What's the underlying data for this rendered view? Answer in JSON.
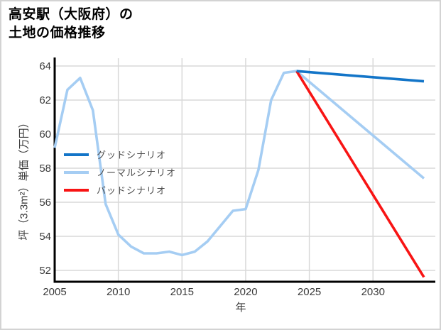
{
  "page": {
    "background": "#ffffff",
    "border_color": "#d3d3d3"
  },
  "header": {
    "title_line1": "高安駅（大阪府）の",
    "title_line2": "土地の価格推移"
  },
  "chart_data": {
    "type": "line",
    "title": "高安駅（大阪府）の土地の価格推移",
    "xlabel": "年",
    "ylabel": "坪（3.3m²）単価（万円）",
    "xlim": [
      2005,
      2035
    ],
    "ylim": [
      51.3,
      64.5
    ],
    "xticks": [
      2005,
      2010,
      2015,
      2020,
      2025,
      2030
    ],
    "yticks": [
      52,
      54,
      56,
      58,
      60,
      62,
      64
    ],
    "grid": true,
    "grid_color": "#d9d9d9",
    "axis_color": "#000000",
    "legend_position": "middle-left",
    "series": [
      {
        "name": "グッドシナリオ",
        "color": "#1375c8",
        "x": [
          2024,
          2034
        ],
        "values": [
          63.7,
          63.1
        ]
      },
      {
        "name": "ノーマルシナリオ",
        "color": "#a5cdf3",
        "x": [
          2005,
          2006,
          2007,
          2008,
          2009,
          2010,
          2011,
          2012,
          2013,
          2014,
          2015,
          2016,
          2017,
          2018,
          2019,
          2020,
          2021,
          2022,
          2023,
          2024,
          2034
        ],
        "values": [
          59.2,
          62.6,
          63.3,
          61.4,
          55.9,
          54.1,
          53.4,
          53.0,
          53.0,
          53.1,
          52.9,
          53.1,
          53.7,
          54.6,
          55.5,
          55.6,
          57.9,
          62.0,
          63.6,
          63.7,
          57.4
        ]
      },
      {
        "name": "バッドシナリオ",
        "color": "#f81414",
        "x": [
          2024,
          2034
        ],
        "values": [
          63.7,
          51.6
        ]
      }
    ]
  }
}
